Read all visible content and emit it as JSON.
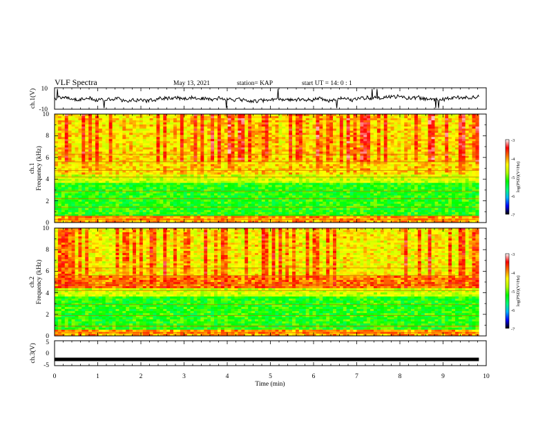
{
  "header": {
    "title": "VLF Spectra",
    "date": "May 13, 2021",
    "station": "station= KAP",
    "start": "start  UT =   14: 0   : 1"
  },
  "colors": {
    "colormap": [
      "#000000",
      "#0000ff",
      "#00b4ff",
      "#00ff78",
      "#00ff00",
      "#b4ff00",
      "#ffff00",
      "#ff7800",
      "#ff0000",
      "#ffffff"
    ],
    "trace": "#000000"
  },
  "chart_data": [
    {
      "type": "line",
      "name": "ch1-waveform",
      "ylabel": "ch.1(V)",
      "ylim": [
        -10,
        10
      ],
      "yticks": [
        "10",
        "-10"
      ],
      "xlim": [
        0,
        10
      ],
      "data_end_min": 9.83,
      "approx_level_v": 0.5
    },
    {
      "type": "heatmap",
      "name": "ch1-spectrogram",
      "ylabel_top": "ch.1",
      "ylabel": "Frequency (kHz)",
      "ylim": [
        0,
        10
      ],
      "yticks": [
        "0",
        "2",
        "4",
        "6",
        "8",
        "10"
      ],
      "xlim": [
        0,
        10
      ],
      "colorbar": {
        "label": "log(PSD)(V²/Hz)",
        "range": [
          -7,
          -3
        ],
        "ticks": [
          "-3",
          "-4",
          "-5",
          "-6",
          "-7"
        ]
      }
    },
    {
      "type": "heatmap",
      "name": "ch2-spectrogram",
      "ylabel_top": "ch.2",
      "ylabel": "Frequency (kHz)",
      "ylim": [
        0,
        10
      ],
      "yticks": [
        "0",
        "2",
        "4",
        "6",
        "8",
        "10"
      ],
      "xlim": [
        0,
        10
      ],
      "colorbar": {
        "label": "log(PSD)(V²/Hz)",
        "range": [
          -7,
          -3
        ],
        "ticks": [
          "-3",
          "-4",
          "-5",
          "-6",
          "-7"
        ]
      }
    },
    {
      "type": "line",
      "name": "ch3-waveform",
      "ylabel": "ch.3(V)",
      "ylim": [
        -5,
        5
      ],
      "yticks": [
        "5",
        "0",
        "-5"
      ],
      "xlim": [
        0,
        10
      ],
      "data_end_min": 9.83,
      "approx_level_v": -2.3
    }
  ],
  "xaxis": {
    "label": "Time (min)",
    "ticks": [
      "0",
      "1",
      "2",
      "3",
      "4",
      "5",
      "6",
      "7",
      "8",
      "9",
      "10"
    ]
  }
}
